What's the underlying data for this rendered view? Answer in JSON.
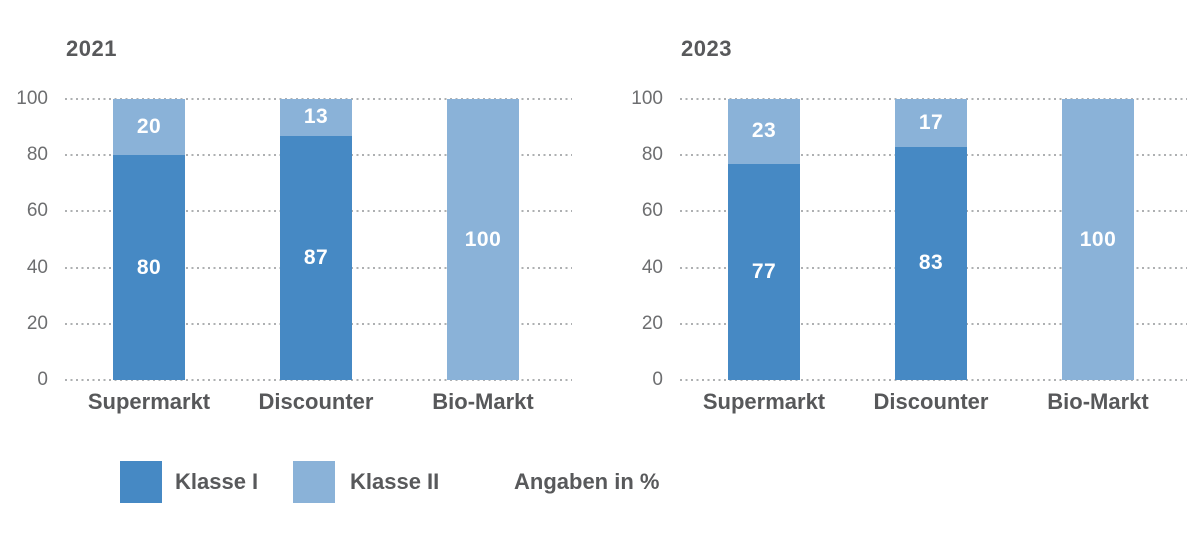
{
  "colors": {
    "klasse1": "#4689c4",
    "klasse2": "#8ab2d8",
    "grid": "#aeb0b2",
    "tick_text": "#6d6e70",
    "label_text": "#58595b",
    "value_text": "#ffffff"
  },
  "legend": {
    "items": [
      {
        "label": "Klasse I",
        "color_key": "klasse1"
      },
      {
        "label": "Klasse II",
        "color_key": "klasse2"
      }
    ],
    "note": "Angaben in %"
  },
  "chart_data": [
    {
      "type": "bar",
      "stacked": true,
      "title": "2021",
      "categories": [
        "Supermarkt",
        "Discounter",
        "Bio-Markt"
      ],
      "series": [
        {
          "name": "Klasse I",
          "values": [
            80,
            87,
            0
          ]
        },
        {
          "name": "Klasse II",
          "values": [
            20,
            13,
            100
          ]
        }
      ],
      "unit": "%",
      "ylim": [
        0,
        100
      ],
      "yticks": [
        0,
        20,
        40,
        60,
        80,
        100
      ],
      "grid": "dotted-horizontal",
      "value_labels": true,
      "legend_position": "bottom"
    },
    {
      "type": "bar",
      "stacked": true,
      "title": "2023",
      "categories": [
        "Supermarkt",
        "Discounter",
        "Bio-Markt"
      ],
      "series": [
        {
          "name": "Klasse I",
          "values": [
            77,
            83,
            0
          ]
        },
        {
          "name": "Klasse II",
          "values": [
            23,
            17,
            100
          ]
        }
      ],
      "unit": "%",
      "ylim": [
        0,
        100
      ],
      "yticks": [
        0,
        20,
        40,
        60,
        80,
        100
      ],
      "grid": "dotted-horizontal",
      "value_labels": true,
      "legend_position": "bottom"
    }
  ]
}
